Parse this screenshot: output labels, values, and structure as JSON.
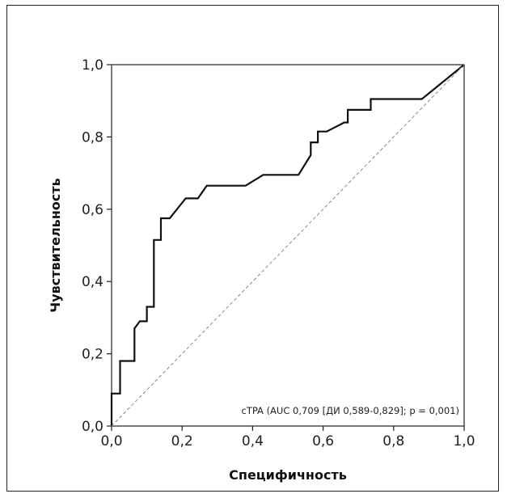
{
  "chart_data": {
    "type": "line",
    "xlabel": "Специфичность",
    "ylabel": "Чувствительность",
    "xlim": [
      0,
      1
    ],
    "ylim": [
      0,
      1
    ],
    "x_ticks": [
      "0,0",
      "0,2",
      "0,4",
      "0,6",
      "0,8",
      "1,0"
    ],
    "y_ticks": [
      "0,0",
      "0,2",
      "0,4",
      "0,6",
      "0,8",
      "1,0"
    ],
    "annotation": "cTPA (AUC 0,709 [ДИ 0,589-0,829]; p = 0,001)",
    "grid": false,
    "series": [
      {
        "style": "solid",
        "color": "#111111",
        "points": [
          [
            0,
            0
          ],
          [
            0,
            0.09
          ],
          [
            0.024,
            0.09
          ],
          [
            0.024,
            0.18
          ],
          [
            0.065,
            0.18
          ],
          [
            0.065,
            0.27
          ],
          [
            0.08,
            0.29
          ],
          [
            0.1,
            0.29
          ],
          [
            0.1,
            0.33
          ],
          [
            0.12,
            0.33
          ],
          [
            0.12,
            0.515
          ],
          [
            0.14,
            0.515
          ],
          [
            0.14,
            0.575
          ],
          [
            0.165,
            0.575
          ],
          [
            0.21,
            0.63
          ],
          [
            0.245,
            0.63
          ],
          [
            0.27,
            0.665
          ],
          [
            0.38,
            0.665
          ],
          [
            0.43,
            0.695
          ],
          [
            0.53,
            0.695
          ],
          [
            0.565,
            0.75
          ],
          [
            0.565,
            0.785
          ],
          [
            0.585,
            0.785
          ],
          [
            0.585,
            0.815
          ],
          [
            0.61,
            0.815
          ],
          [
            0.66,
            0.84
          ],
          [
            0.67,
            0.84
          ],
          [
            0.67,
            0.875
          ],
          [
            0.735,
            0.875
          ],
          [
            0.735,
            0.905
          ],
          [
            0.88,
            0.905
          ],
          [
            1,
            1
          ]
        ]
      },
      {
        "style": "dashed",
        "color": "#888888",
        "points": [
          [
            0,
            0
          ],
          [
            1,
            1
          ]
        ]
      }
    ]
  }
}
